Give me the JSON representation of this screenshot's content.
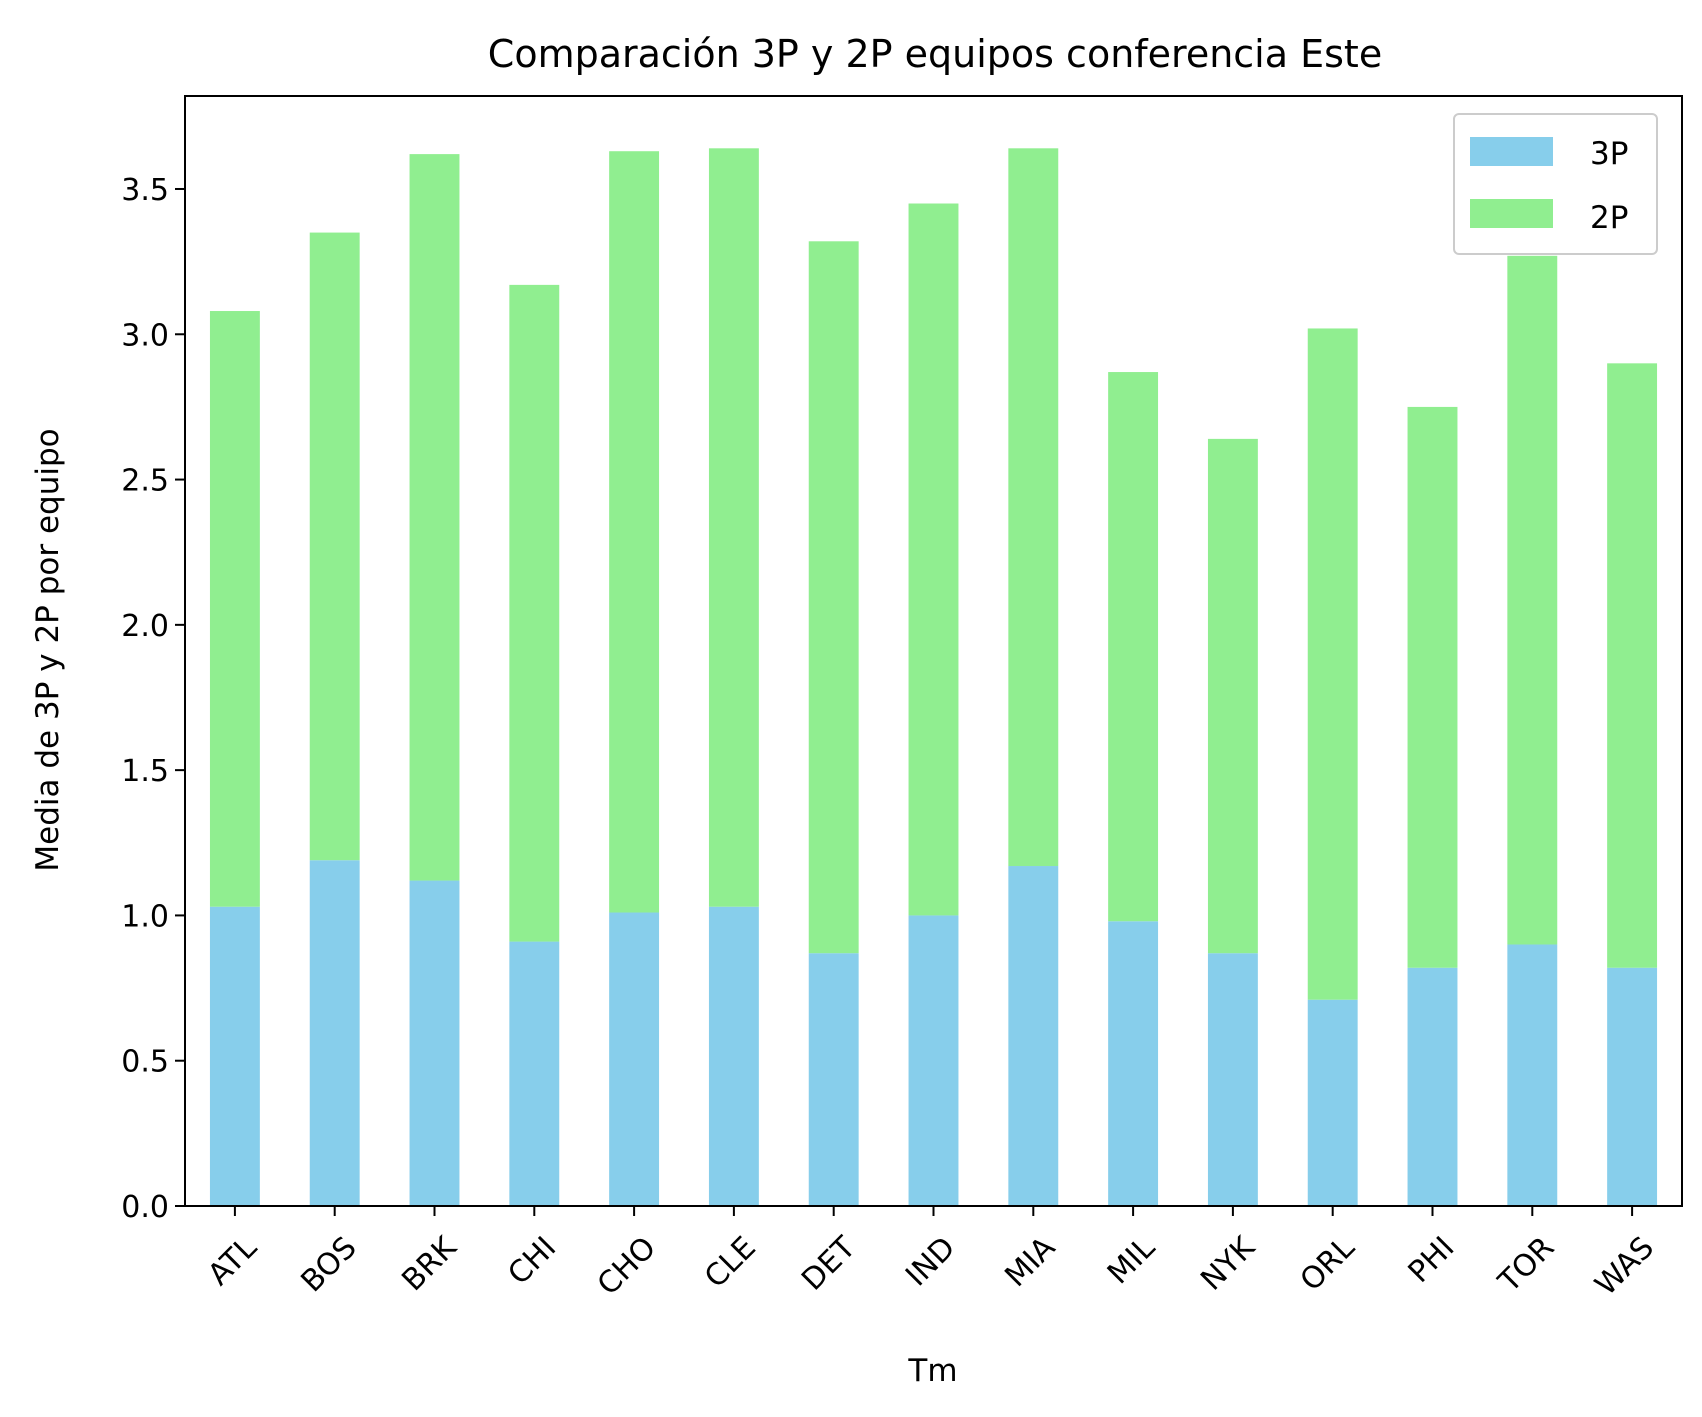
{
  "chart_data": {
    "type": "bar",
    "stacked": true,
    "title": "Comparación 3P y 2P equipos conferencia Este",
    "xlabel": "Tm",
    "ylabel": "Media de 3P y 2P por equipo",
    "categories": [
      "ATL",
      "BOS",
      "BRK",
      "CHI",
      "CHO",
      "CLE",
      "DET",
      "IND",
      "MIA",
      "MIL",
      "NYK",
      "ORL",
      "PHI",
      "TOR",
      "WAS"
    ],
    "series": [
      {
        "name": "3P",
        "color": "#87ceeb",
        "values": [
          1.03,
          1.19,
          1.12,
          0.91,
          1.01,
          1.03,
          0.87,
          1.0,
          1.17,
          0.98,
          0.87,
          0.71,
          0.82,
          0.9,
          0.82
        ]
      },
      {
        "name": "2P",
        "color": "#90ee90",
        "values": [
          2.05,
          2.16,
          2.5,
          2.26,
          2.62,
          2.61,
          2.45,
          2.45,
          2.47,
          1.89,
          1.77,
          2.31,
          1.93,
          2.37,
          2.08
        ]
      }
    ],
    "ylim": [
      0,
      3.82
    ],
    "yticks": [
      "0.0",
      "0.5",
      "1.0",
      "1.5",
      "2.0",
      "2.5",
      "3.0",
      "3.5"
    ],
    "legend": "top-right",
    "grid": false
  }
}
